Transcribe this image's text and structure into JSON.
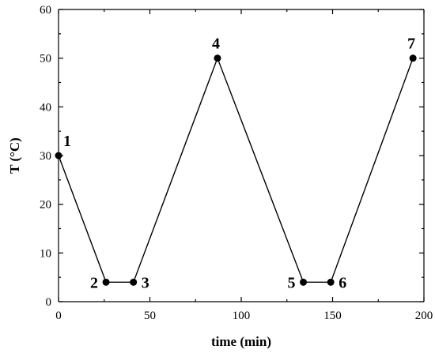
{
  "chart_data": {
    "type": "line",
    "xlabel": "time (min)",
    "ylabel": "T (°C)",
    "xlim": [
      0,
      200
    ],
    "ylim": [
      0,
      60
    ],
    "x_ticks": [
      0,
      50,
      100,
      150,
      200
    ],
    "y_ticks": [
      0,
      10,
      20,
      30,
      40,
      50,
      60
    ],
    "grid": false,
    "series": [
      {
        "x": [
          0,
          26,
          41,
          87,
          134,
          149,
          194
        ],
        "y": [
          30,
          4,
          4,
          50,
          4,
          4,
          50
        ],
        "point_labels": [
          "1",
          "2",
          "3",
          "4",
          "5",
          "6",
          "7"
        ]
      }
    ]
  }
}
